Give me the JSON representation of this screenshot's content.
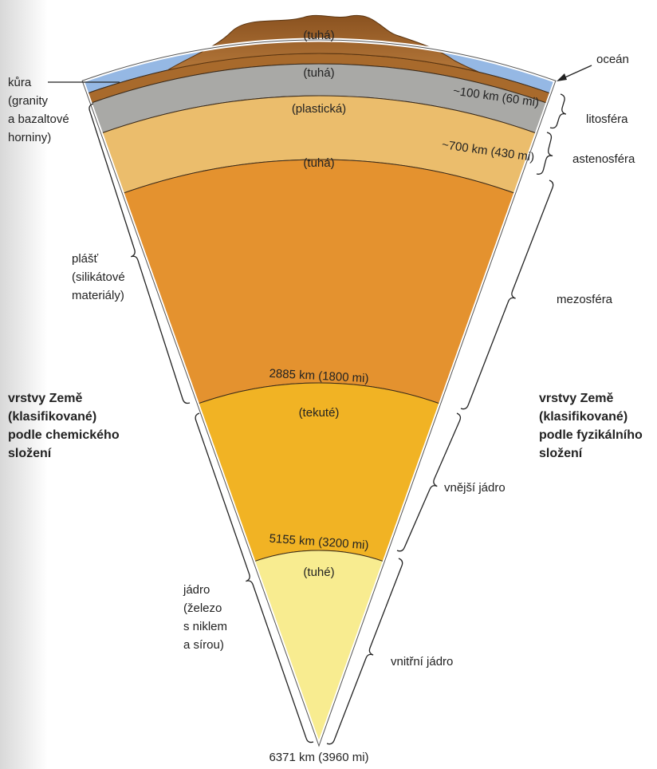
{
  "layer_labels": [
    "(tuhá)",
    "(tuhá)",
    "(plastická)",
    "(tuhá)",
    "(tekuté)",
    "(tuhé)"
  ],
  "depth_labels": [
    "~100 km (60 mi)",
    "~700 km (430 mi)",
    "2885 km (1800 mi)",
    "5155 km (3200 mi)",
    "6371 km (3960 mi)"
  ],
  "chemical": {
    "crust": [
      "kůra",
      "(granity",
      "a bazaltové",
      "horniny)"
    ],
    "mantle": [
      "plášť",
      "(silikátové",
      "materiály)"
    ],
    "core": [
      "jádro",
      "(železo",
      "s niklem",
      "a sírou)"
    ],
    "heading": [
      "vrstvy Země",
      "(klasifikované)",
      "podle chemického",
      "složení"
    ]
  },
  "physical": {
    "ocean": "oceán",
    "lithosphere": "litosféra",
    "asthenosphere": "astenosféra",
    "mesosphere": "mezosféra",
    "outer_core": "vnější jádro",
    "inner_core": "vnitřní jádro",
    "heading": [
      "vrstvy Země",
      "(klasifikované)",
      "podle fyzikálního",
      "složení"
    ]
  }
}
